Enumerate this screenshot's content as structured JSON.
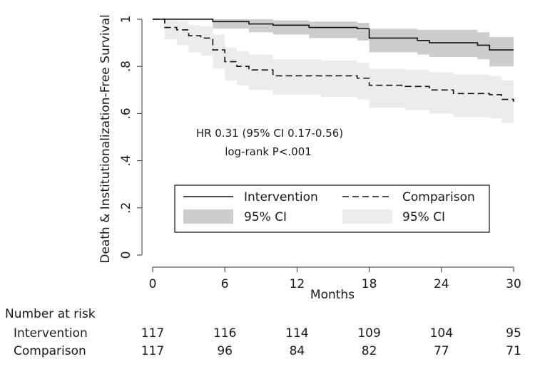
{
  "chart_data": {
    "type": "line",
    "subtype": "kaplan-meier",
    "ylabel": "Death & Institutionalization-Free Survival",
    "xlabel": "Months",
    "xlim": [
      0,
      30
    ],
    "ylim": [
      0,
      1
    ],
    "x_ticks": [
      0,
      6,
      12,
      18,
      24,
      30
    ],
    "x_tick_labels": [
      "0",
      "6",
      "12",
      "18",
      "24",
      "30"
    ],
    "y_ticks": [
      0,
      0.2,
      0.4,
      0.6,
      0.8,
      1
    ],
    "y_tick_labels": [
      "0",
      ".2",
      ".4",
      ".6",
      ".8",
      "1"
    ],
    "annotations": [
      "HR 0.31 (95% CI 0.17-0.56)",
      "log-rank P<.001"
    ],
    "legend": {
      "position": "inside-lower-center",
      "entries": [
        "Intervention",
        "Comparison",
        "95% CI",
        "95% CI"
      ]
    },
    "series": [
      {
        "name": "Intervention",
        "style": "solid",
        "x": [
          0,
          5,
          8,
          10,
          13,
          17,
          18,
          22,
          23,
          27,
          28,
          30
        ],
        "y": [
          1.0,
          0.99,
          0.98,
          0.975,
          0.965,
          0.96,
          0.92,
          0.91,
          0.9,
          0.89,
          0.87,
          0.87
        ],
        "ci_lower": [
          1.0,
          0.96,
          0.945,
          0.935,
          0.92,
          0.91,
          0.86,
          0.85,
          0.84,
          0.83,
          0.8,
          0.79
        ],
        "ci_upper": [
          1.0,
          1.0,
          1.0,
          0.995,
          0.99,
          0.985,
          0.96,
          0.955,
          0.955,
          0.945,
          0.925,
          0.92
        ]
      },
      {
        "name": "Comparison",
        "style": "dashed",
        "x": [
          0,
          1,
          2,
          3,
          4,
          5,
          6,
          7,
          8,
          10,
          14,
          17,
          18,
          21,
          23,
          25,
          28,
          29,
          30
        ],
        "y": [
          1.0,
          0.965,
          0.955,
          0.93,
          0.92,
          0.87,
          0.82,
          0.8,
          0.785,
          0.76,
          0.76,
          0.75,
          0.72,
          0.715,
          0.7,
          0.685,
          0.68,
          0.66,
          0.65
        ],
        "ci_lower": [
          1.0,
          0.915,
          0.89,
          0.86,
          0.845,
          0.79,
          0.74,
          0.72,
          0.7,
          0.68,
          0.67,
          0.66,
          0.625,
          0.615,
          0.6,
          0.585,
          0.58,
          0.56,
          0.55
        ],
        "ci_upper": [
          1.0,
          0.995,
          0.99,
          0.975,
          0.97,
          0.935,
          0.88,
          0.865,
          0.85,
          0.83,
          0.825,
          0.815,
          0.79,
          0.785,
          0.775,
          0.765,
          0.76,
          0.74,
          0.73
        ]
      }
    ]
  },
  "risk_table": {
    "title": "Number at risk",
    "rows": [
      {
        "label": "Intervention",
        "values": [
          "117",
          "116",
          "114",
          "109",
          "104",
          "95"
        ]
      },
      {
        "label": "Comparison",
        "values": [
          "117",
          "96",
          "84",
          "82",
          "77",
          "71"
        ]
      }
    ]
  },
  "colors": {
    "intervention_line": "#111111",
    "comparison_line": "#111111",
    "intervention_ci": "#cdcdcd",
    "comparison_ci": "#ececec"
  }
}
